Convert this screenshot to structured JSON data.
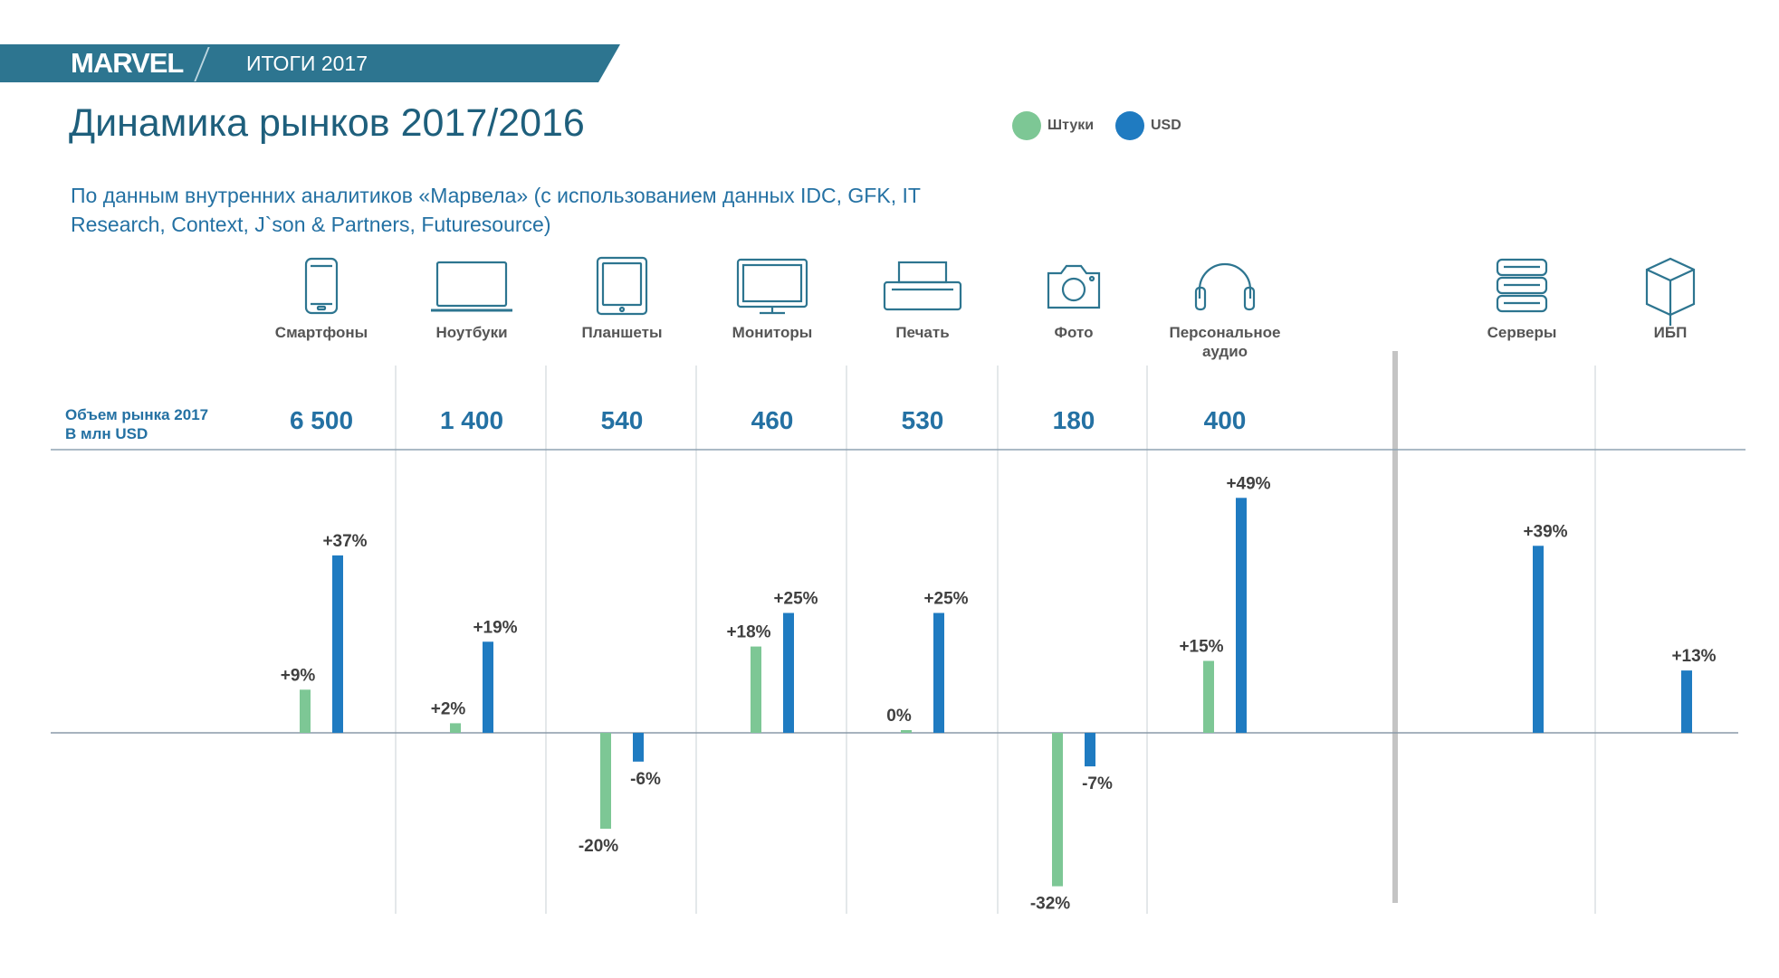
{
  "header": {
    "logo": "MARVEL",
    "banner_title": "ИТОГИ 2017"
  },
  "title": "Динамика рынков 2017/2016",
  "subtitle_line1": "По данным внутренних аналитиков «Марвела» (с использованием данных IDC,  GFK, IT",
  "subtitle_line2": "Research, Context, J`son & Partners, Futuresource)",
  "legend": {
    "units": "Штуки",
    "usd": "USD"
  },
  "market_label": {
    "line1": "Объем рынка 2017",
    "line2": "В млн USD"
  },
  "colors": {
    "units": "#7dc795",
    "usd": "#1f7bc1",
    "brand": "#2d7590",
    "title": "#1e5f7c",
    "market": "#2471a3"
  },
  "chart_data": {
    "type": "bar",
    "categories": [
      {
        "label": "Смартфоны",
        "icon": "smartphone-icon",
        "volume": "6 500"
      },
      {
        "label": "Ноутбуки",
        "icon": "laptop-icon",
        "volume": "1 400"
      },
      {
        "label": "Планшеты",
        "icon": "tablet-icon",
        "volume": "540"
      },
      {
        "label": "Мониторы",
        "icon": "monitor-icon",
        "volume": "460"
      },
      {
        "label": "Печать",
        "icon": "printer-icon",
        "volume": "530"
      },
      {
        "label": "Фото",
        "icon": "camera-icon",
        "volume": "180"
      },
      {
        "label": "Персональное аудио",
        "icon": "headphones-icon",
        "volume": "400"
      },
      {
        "label": "Серверы",
        "icon": "server-icon",
        "volume": ""
      },
      {
        "label": "ИБП",
        "icon": "ups-box-icon",
        "volume": ""
      }
    ],
    "series": [
      {
        "name": "Штуки",
        "values": [
          9,
          2,
          -20,
          18,
          0,
          -32,
          15,
          null,
          null
        ],
        "labels": [
          "+9%",
          "+2%",
          "-20%",
          "+18%",
          "0%",
          "-32%",
          "+15%",
          "",
          ""
        ]
      },
      {
        "name": "USD",
        "values": [
          37,
          19,
          -6,
          25,
          25,
          -7,
          49,
          39,
          13
        ],
        "labels": [
          "+37%",
          "+19%",
          "-6%",
          "+25%",
          "+25%",
          "-7%",
          "+49%",
          "+39%",
          "+13%"
        ]
      }
    ],
    "unit": "%",
    "ylim": [
      -32,
      49
    ]
  }
}
